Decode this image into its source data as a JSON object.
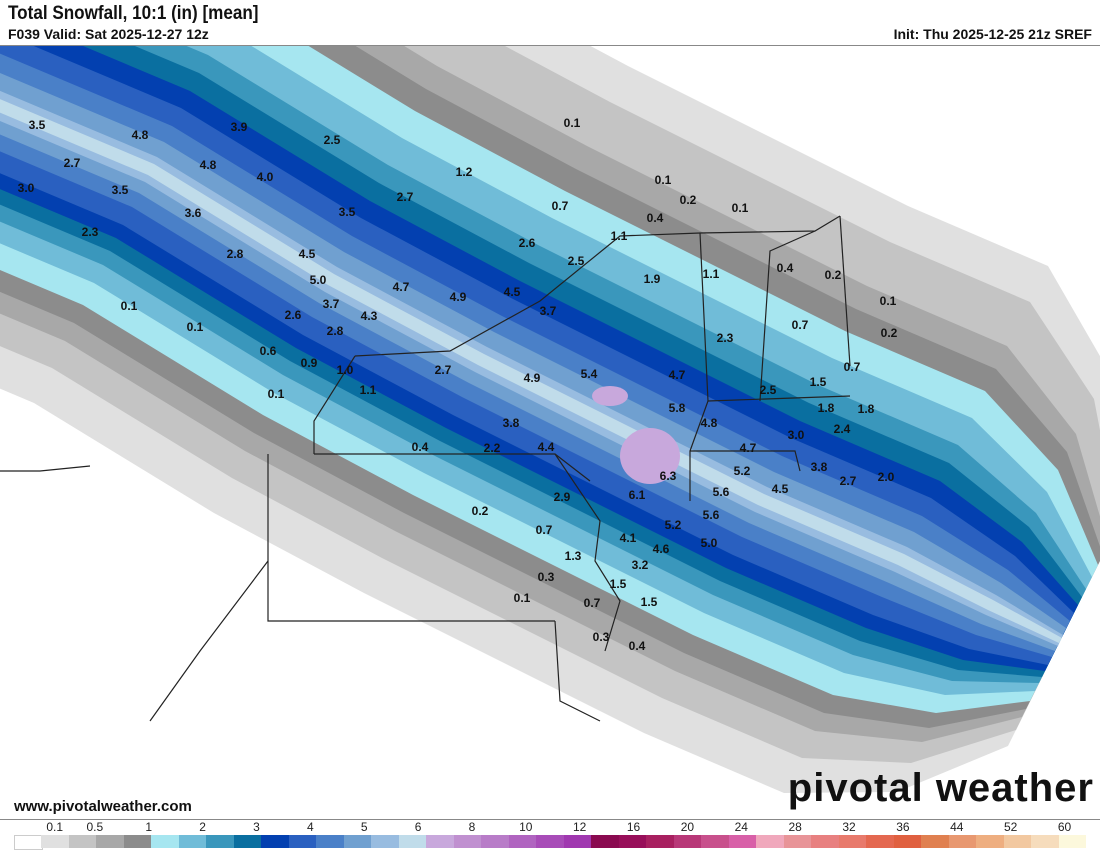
{
  "header": {
    "title": "Total Snowfall, 10:1 (in) [mean]",
    "valid": "F039 Valid: Sat 2025-12-27 12z",
    "init": "Init: Thu 2025-12-25 21z SREF"
  },
  "footer": {
    "website": "www.pivotalweather.com",
    "logo": "pivotal weather"
  },
  "colorbar": {
    "labels": [
      "0.1",
      "0.5",
      "1",
      "2",
      "3",
      "4",
      "5",
      "6",
      "8",
      "10",
      "12",
      "16",
      "20",
      "24",
      "28",
      "32",
      "36",
      "44",
      "52",
      "60"
    ],
    "colors": [
      "#ffffff",
      "#e0e0e0",
      "#c4c4c4",
      "#a8a8a8",
      "#8c8c8c",
      "#a6e6f0",
      "#70bcd8",
      "#3a97bc",
      "#0a6fa0",
      "#0340b0",
      "#2a60c0",
      "#4a80c8",
      "#70a0d0",
      "#98bce0",
      "#c0dcea",
      "#c8a8dc",
      "#c090d0",
      "#b87cc8",
      "#b064c0",
      "#a84cb8",
      "#a038b0",
      "#8a0a50",
      "#980f5a",
      "#a82060",
      "#b83878",
      "#c8508c",
      "#d860a8",
      "#f0a8bc",
      "#e89498",
      "#e88080",
      "#e87a6c",
      "#e46850",
      "#e06040",
      "#e08050",
      "#e89870",
      "#eeae80",
      "#f2c8a0",
      "#f6dcbc",
      "#fcf8dc"
    ]
  },
  "map": {
    "values": [
      "3.5",
      "4.8",
      "3.9",
      "2.5",
      "0.1",
      "4.8",
      "2.7",
      "3.0",
      "3.5",
      "4.0",
      "1.2",
      "0.1",
      "0.2",
      "0.1",
      "3.6",
      "3.5",
      "2.7",
      "0.7",
      "0.4",
      "2.3",
      "1.1",
      "2.6",
      "2.8",
      "4.5",
      "2.5",
      "1.9",
      "1.1",
      "0.4",
      "0.2",
      "5.0",
      "4.7",
      "4.9",
      "4.5",
      "0.1",
      "0.1",
      "3.7",
      "4.3",
      "3.7",
      "2.6",
      "0.7",
      "0.1",
      "0.2",
      "2.8",
      "2.3",
      "0.6",
      "0.9",
      "1.0",
      "2.7",
      "4.9",
      "5.4",
      "4.7",
      "1.5",
      "0.7",
      "1.1",
      "0.1",
      "2.5",
      "1.8",
      "1.8",
      "5.8",
      "3.8",
      "4.8",
      "3.0",
      "2.4",
      "0.4",
      "2.2",
      "4.4",
      "4.7",
      "6.3",
      "5.2",
      "3.8",
      "2.7",
      "2.0",
      "5.6",
      "4.5",
      "6.1",
      "2.9",
      "0.2",
      "5.6",
      "0.7",
      "5.2",
      "4.1",
      "5.0",
      "4.6",
      "1.3",
      "3.2",
      "0.3",
      "1.5",
      "0.1",
      "0.7",
      "1.5",
      "0.3",
      "0.4"
    ]
  }
}
